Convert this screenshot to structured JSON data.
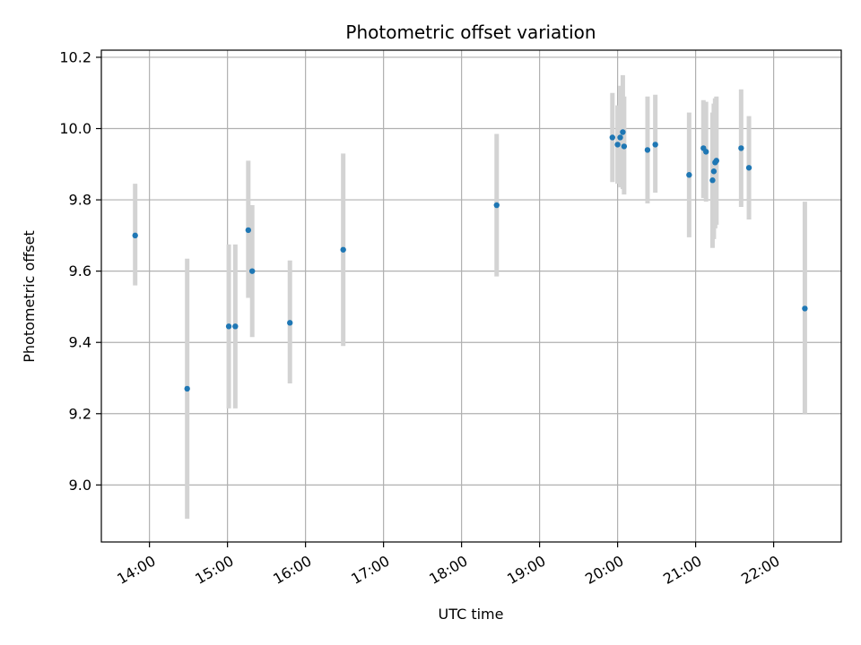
{
  "chart_data": {
    "type": "scatter",
    "title": "Photometric offset variation",
    "xlabel": "UTC time",
    "ylabel": "Photometric offset",
    "x_tick_labels": [
      "14:00",
      "15:00",
      "16:00",
      "17:00",
      "18:00",
      "19:00",
      "20:00",
      "21:00",
      "22:00"
    ],
    "y_ticks": [
      9.0,
      9.2,
      9.4,
      9.6,
      9.8,
      10.0,
      10.2
    ],
    "y_tick_labels": [
      "9.0",
      "9.2",
      "9.4",
      "9.6",
      "9.8",
      "10.0",
      "10.2"
    ],
    "xlim": [
      "13:23",
      "22:52"
    ],
    "ylim": [
      8.84,
      10.22
    ],
    "grid": true,
    "colors": {
      "point": "#1f77b4",
      "errorbar": "#d3d3d3",
      "grid": "#b0b0b0"
    },
    "points": [
      {
        "x": "13:49",
        "y": 9.7,
        "ylo": 9.56,
        "yhi": 9.845
      },
      {
        "x": "14:29",
        "y": 9.27,
        "ylo": 8.905,
        "yhi": 9.635
      },
      {
        "x": "15:01",
        "y": 9.445,
        "ylo": 9.215,
        "yhi": 9.675
      },
      {
        "x": "15:06",
        "y": 9.445,
        "ylo": 9.215,
        "yhi": 9.675
      },
      {
        "x": "15:16",
        "y": 9.715,
        "ylo": 9.525,
        "yhi": 9.91
      },
      {
        "x": "15:19",
        "y": 9.6,
        "ylo": 9.415,
        "yhi": 9.785
      },
      {
        "x": "15:48",
        "y": 9.455,
        "ylo": 9.285,
        "yhi": 9.63
      },
      {
        "x": "16:29",
        "y": 9.66,
        "ylo": 9.39,
        "yhi": 9.93
      },
      {
        "x": "18:27",
        "y": 9.785,
        "ylo": 9.585,
        "yhi": 9.985
      },
      {
        "x": "19:56",
        "y": 9.975,
        "ylo": 9.85,
        "yhi": 10.1
      },
      {
        "x": "20:00",
        "y": 9.955,
        "ylo": 9.845,
        "yhi": 10.065
      },
      {
        "x": "20:02",
        "y": 9.975,
        "ylo": 9.835,
        "yhi": 10.12
      },
      {
        "x": "20:04",
        "y": 9.99,
        "ylo": 9.83,
        "yhi": 10.15
      },
      {
        "x": "20:05",
        "y": 9.95,
        "ylo": 9.815,
        "yhi": 10.09
      },
      {
        "x": "20:23",
        "y": 9.94,
        "ylo": 9.79,
        "yhi": 10.09
      },
      {
        "x": "20:29",
        "y": 9.955,
        "ylo": 9.82,
        "yhi": 10.095
      },
      {
        "x": "20:55",
        "y": 9.87,
        "ylo": 9.695,
        "yhi": 10.045
      },
      {
        "x": "21:06",
        "y": 9.945,
        "ylo": 9.805,
        "yhi": 10.08
      },
      {
        "x": "21:08",
        "y": 9.935,
        "ylo": 9.795,
        "yhi": 10.075
      },
      {
        "x": "21:13",
        "y": 9.855,
        "ylo": 9.665,
        "yhi": 10.045
      },
      {
        "x": "21:14",
        "y": 9.88,
        "ylo": 9.69,
        "yhi": 10.07
      },
      {
        "x": "21:15",
        "y": 9.905,
        "ylo": 9.72,
        "yhi": 10.085
      },
      {
        "x": "21:16",
        "y": 9.91,
        "ylo": 9.73,
        "yhi": 10.09
      },
      {
        "x": "21:35",
        "y": 9.945,
        "ylo": 9.78,
        "yhi": 10.11
      },
      {
        "x": "21:41",
        "y": 9.89,
        "ylo": 9.745,
        "yhi": 10.035
      },
      {
        "x": "22:24",
        "y": 9.495,
        "ylo": 9.2,
        "yhi": 9.795
      }
    ]
  }
}
